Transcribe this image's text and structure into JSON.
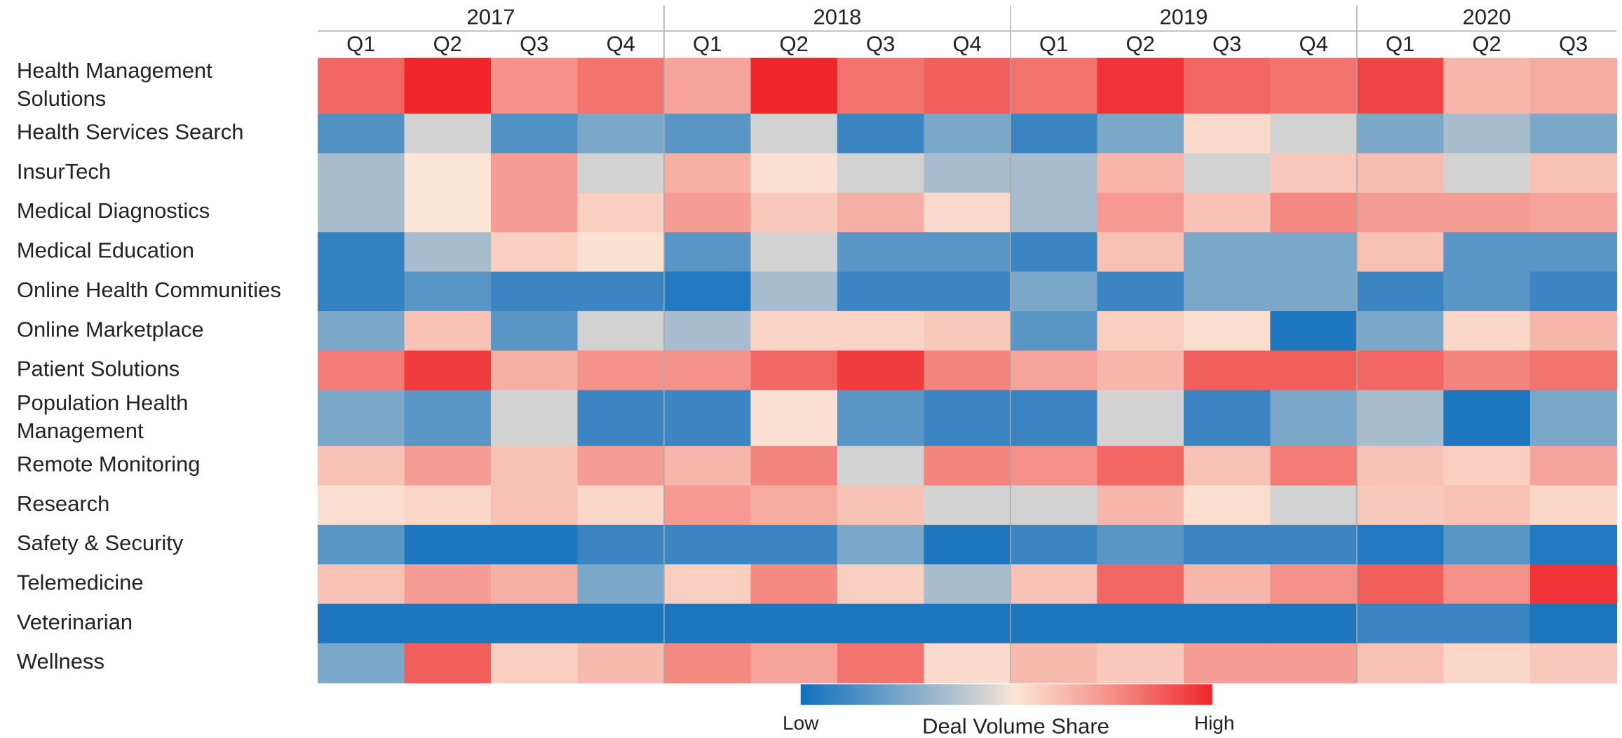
{
  "chart_data": {
    "type": "heatmap",
    "years": [
      {
        "name": "2017",
        "quarters": [
          "Q1",
          "Q2",
          "Q3",
          "Q4"
        ]
      },
      {
        "name": "2018",
        "quarters": [
          "Q1",
          "Q2",
          "Q3",
          "Q4"
        ]
      },
      {
        "name": "2019",
        "quarters": [
          "Q1",
          "Q2",
          "Q3",
          "Q4"
        ]
      },
      {
        "name": "2020",
        "quarters": [
          "Q1",
          "Q2",
          "Q3"
        ]
      }
    ],
    "rows": [
      "Health Management Solutions",
      "Health Services Search",
      "InsurTech",
      "Medical Diagnostics",
      "Medical Education",
      "Online Health Communities",
      "Online Marketplace",
      "Patient Solutions",
      "Population Health Management",
      "Remote Monitoring",
      "Research",
      "Safety & Security",
      "Telemedicine",
      "Veterinarian",
      "Wellness"
    ],
    "values": [
      [
        85,
        100,
        75,
        82,
        70,
        100,
        82,
        87,
        82,
        97,
        85,
        82,
        93,
        65,
        68
      ],
      [
        15,
        45,
        15,
        25,
        17,
        45,
        10,
        25,
        10,
        25,
        55,
        45,
        25,
        35,
        25
      ],
      [
        35,
        52,
        72,
        45,
        67,
        53,
        45,
        35,
        35,
        65,
        45,
        60,
        63,
        45,
        62
      ],
      [
        35,
        52,
        72,
        58,
        72,
        60,
        67,
        55,
        35,
        73,
        62,
        77,
        72,
        72,
        70
      ],
      [
        8,
        35,
        58,
        53,
        17,
        45,
        17,
        17,
        10,
        62,
        25,
        25,
        62,
        17,
        17
      ],
      [
        8,
        17,
        10,
        10,
        4,
        35,
        10,
        10,
        25,
        10,
        25,
        25,
        10,
        17,
        10
      ],
      [
        25,
        62,
        17,
        45,
        35,
        57,
        57,
        60,
        17,
        58,
        54,
        3,
        25,
        56,
        65
      ],
      [
        80,
        95,
        67,
        75,
        75,
        85,
        95,
        78,
        70,
        65,
        87,
        87,
        85,
        78,
        82
      ],
      [
        25,
        17,
        45,
        10,
        10,
        53,
        17,
        10,
        10,
        45,
        10,
        25,
        35,
        3,
        25
      ],
      [
        62,
        72,
        62,
        72,
        65,
        78,
        45,
        78,
        75,
        85,
        62,
        80,
        62,
        58,
        70
      ],
      [
        54,
        56,
        62,
        56,
        73,
        68,
        62,
        45,
        45,
        65,
        54,
        45,
        60,
        62,
        56
      ],
      [
        17,
        3,
        3,
        10,
        10,
        10,
        25,
        3,
        10,
        17,
        10,
        10,
        4,
        17,
        4
      ],
      [
        62,
        72,
        67,
        25,
        58,
        77,
        58,
        35,
        62,
        85,
        65,
        75,
        87,
        75,
        97
      ],
      [
        3,
        3,
        3,
        3,
        3,
        3,
        3,
        3,
        3,
        3,
        3,
        3,
        10,
        10,
        3
      ],
      [
        25,
        87,
        58,
        64,
        77,
        70,
        82,
        55,
        64,
        60,
        72,
        72,
        62,
        56,
        60
      ]
    ],
    "zlim": [
      0,
      100
    ],
    "colorscale": [
      [
        0,
        "#1170bd"
      ],
      [
        25,
        "#7ba7c9"
      ],
      [
        45,
        "#d2d2d2"
      ],
      [
        52,
        "#fbe5d6"
      ],
      [
        75,
        "#f4928a"
      ],
      [
        100,
        "#f0262a"
      ]
    ],
    "colorbar": {
      "title": "Deal Volume Share",
      "low_label": "Low",
      "high_label": "High"
    }
  }
}
